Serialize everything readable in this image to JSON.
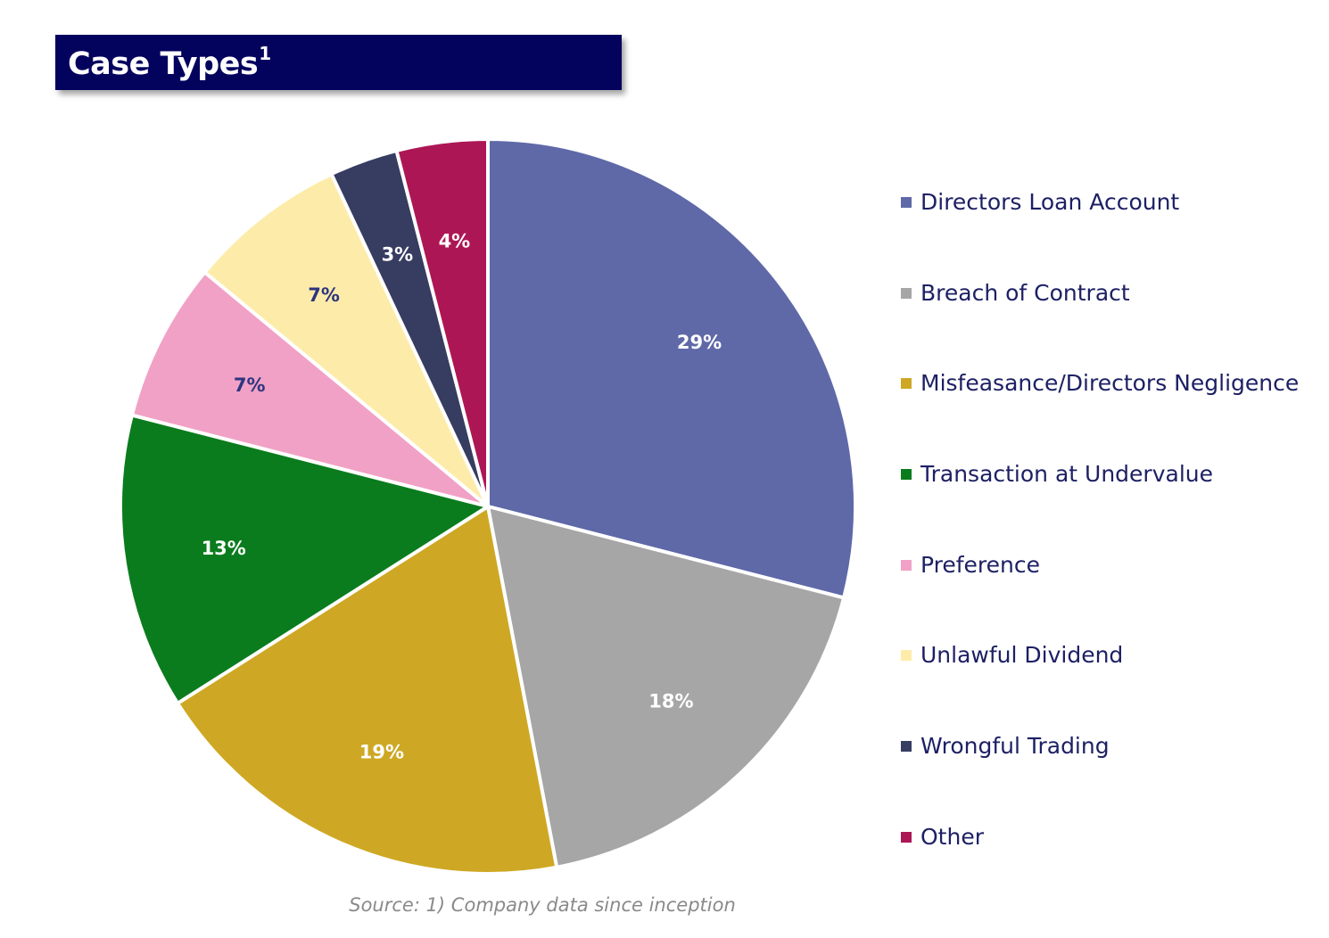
{
  "header": {
    "title": "Case Types",
    "title_superscript": "1"
  },
  "chart_data": {
    "type": "pie",
    "slices": [
      {
        "label": "Directors Loan Account",
        "value": 29,
        "display": "29%",
        "color": "#5f69a8",
        "label_color": "#ffffff"
      },
      {
        "label": "Breach of Contract",
        "value": 18,
        "display": "18%",
        "color": "#a6a6a6",
        "label_color": "#ffffff"
      },
      {
        "label": "Misfeasance/Directors Negligence",
        "value": 19,
        "display": "19%",
        "color": "#cea824",
        "label_color": "#ffffff"
      },
      {
        "label": "Transaction at Undervalue",
        "value": 13,
        "display": "13%",
        "color": "#0b7c1d",
        "label_color": "#ffffff"
      },
      {
        "label": "Preference",
        "value": 7,
        "display": "7%",
        "color": "#f1a1c6",
        "label_color": "#2d3580"
      },
      {
        "label": "Unlawful Dividend",
        "value": 7,
        "display": "7%",
        "color": "#fdeca9",
        "label_color": "#2d3580"
      },
      {
        "label": "Wrongful Trading",
        "value": 3,
        "display": "3%",
        "color": "#373c61",
        "label_color": "#ffffff"
      },
      {
        "label": "Other",
        "value": 4,
        "display": "4%",
        "color": "#ad1654",
        "label_color": "#ffffff"
      }
    ],
    "start": "top",
    "direction": "clockwise",
    "legend_position": "right"
  },
  "footer": {
    "source": "Source: 1) Company data since inception"
  }
}
